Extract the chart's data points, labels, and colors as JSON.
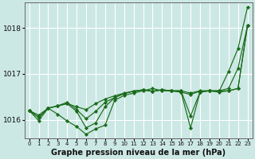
{
  "bg_color": "#cce8e4",
  "grid_color": "#ffffff",
  "line_color": "#1a6b1a",
  "marker_color": "#1a6b1a",
  "xlabel": "Graphe pression niveau de la mer (hPa)",
  "xlabel_fontsize": 7,
  "xlim": [
    -0.5,
    23.5
  ],
  "ylim": [
    1015.6,
    1018.55
  ],
  "yticks": [
    1016,
    1017,
    1018
  ],
  "xticks": [
    0,
    1,
    2,
    3,
    4,
    5,
    6,
    7,
    8,
    9,
    10,
    11,
    12,
    13,
    14,
    15,
    16,
    17,
    18,
    19,
    20,
    21,
    22,
    23
  ],
  "series": [
    [
      1016.2,
      1016.1,
      1016.25,
      1016.3,
      1016.35,
      1016.28,
      1016.22,
      1016.35,
      1016.45,
      1016.52,
      1016.58,
      1016.62,
      1016.65,
      1016.62,
      1016.65,
      1016.63,
      1016.6,
      1016.55,
      1016.62,
      1016.63,
      1016.61,
      1017.05,
      1017.55,
      1018.45
    ],
    [
      1016.2,
      1016.05,
      1016.25,
      1016.3,
      1016.35,
      1016.18,
      1015.82,
      1015.93,
      1016.28,
      1016.48,
      1016.57,
      1016.62,
      1016.65,
      1016.62,
      1016.65,
      1016.63,
      1016.6,
      1015.82,
      1016.6,
      1016.63,
      1016.6,
      1016.63,
      1016.68,
      1018.05
    ],
    [
      1016.2,
      1016.05,
      1016.25,
      1016.3,
      1016.38,
      1016.22,
      1016.02,
      1016.18,
      1016.38,
      1016.48,
      1016.57,
      1016.62,
      1016.65,
      1016.62,
      1016.65,
      1016.63,
      1016.63,
      1016.08,
      1016.6,
      1016.63,
      1016.63,
      1016.68,
      1017.12,
      1018.05
    ],
    [
      1016.2,
      1015.98,
      1016.25,
      1016.12,
      1015.97,
      1015.85,
      1015.68,
      1015.8,
      1015.88,
      1016.42,
      1016.53,
      1016.58,
      1016.63,
      1016.68,
      1016.63,
      1016.63,
      1016.63,
      1016.58,
      1016.63,
      1016.63,
      1016.63,
      1016.63,
      1016.68,
      1018.05
    ]
  ]
}
